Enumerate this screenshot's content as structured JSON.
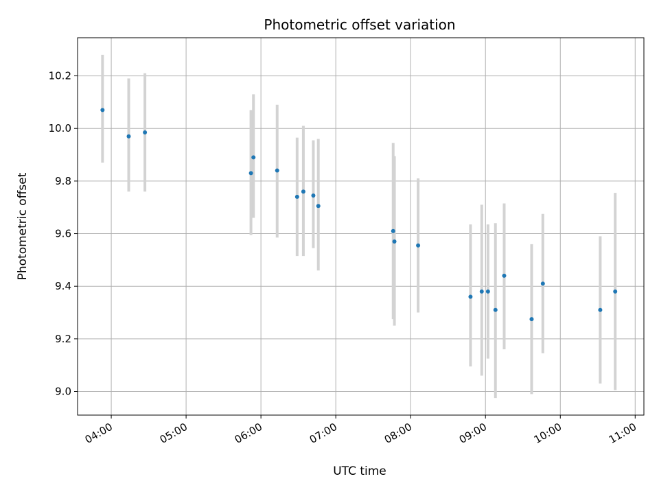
{
  "chart_data": {
    "type": "scatter",
    "title": "Photometric offset variation",
    "xlabel": "UTC time",
    "ylabel": "Photometric offset",
    "grid": true,
    "legend": "none",
    "x_ticks": [
      "04:00",
      "05:00",
      "06:00",
      "07:00",
      "08:00",
      "09:00",
      "10:00",
      "11:00"
    ],
    "y_ticks": [
      "9.0",
      "9.2",
      "9.4",
      "9.6",
      "9.8",
      "10.0",
      "10.2"
    ],
    "xlim": [
      "03:33",
      "11:07"
    ],
    "ylim": [
      8.91,
      10.345
    ],
    "colors": {
      "point": "#1f77b4",
      "errorbar": "#d3d3d3",
      "grid": "#b0b0b0"
    },
    "series": [
      {
        "points": [
          {
            "x": "03:53",
            "y": 10.07,
            "ylo": 9.87,
            "yhi": 10.28
          },
          {
            "x": "04:14",
            "y": 9.97,
            "ylo": 9.76,
            "yhi": 10.19
          },
          {
            "x": "04:27",
            "y": 9.985,
            "ylo": 9.76,
            "yhi": 10.21
          },
          {
            "x": "05:52",
            "y": 9.83,
            "ylo": 9.595,
            "yhi": 10.07
          },
          {
            "x": "05:54",
            "y": 9.89,
            "ylo": 9.66,
            "yhi": 10.13
          },
          {
            "x": "06:13",
            "y": 9.84,
            "ylo": 9.585,
            "yhi": 10.09
          },
          {
            "x": "06:29",
            "y": 9.74,
            "ylo": 9.515,
            "yhi": 9.965
          },
          {
            "x": "06:34",
            "y": 9.76,
            "ylo": 9.515,
            "yhi": 10.01
          },
          {
            "x": "06:42",
            "y": 9.745,
            "ylo": 9.545,
            "yhi": 9.955
          },
          {
            "x": "06:46",
            "y": 9.705,
            "ylo": 9.46,
            "yhi": 9.96
          },
          {
            "x": "07:46",
            "y": 9.61,
            "ylo": 9.275,
            "yhi": 9.945
          },
          {
            "x": "07:47",
            "y": 9.57,
            "ylo": 9.25,
            "yhi": 9.895
          },
          {
            "x": "08:06",
            "y": 9.555,
            "ylo": 9.3,
            "yhi": 9.81
          },
          {
            "x": "08:48",
            "y": 9.36,
            "ylo": 9.095,
            "yhi": 9.635
          },
          {
            "x": "08:57",
            "y": 9.38,
            "ylo": 9.06,
            "yhi": 9.71
          },
          {
            "x": "09:02",
            "y": 9.38,
            "ylo": 9.125,
            "yhi": 9.635
          },
          {
            "x": "09:08",
            "y": 9.31,
            "ylo": 8.975,
            "yhi": 9.64
          },
          {
            "x": "09:15",
            "y": 9.44,
            "ylo": 9.16,
            "yhi": 9.715
          },
          {
            "x": "09:37",
            "y": 9.275,
            "ylo": 8.99,
            "yhi": 9.56
          },
          {
            "x": "09:46",
            "y": 9.41,
            "ylo": 9.145,
            "yhi": 9.675
          },
          {
            "x": "10:32",
            "y": 9.31,
            "ylo": 9.03,
            "yhi": 9.59
          },
          {
            "x": "10:44",
            "y": 9.38,
            "ylo": 9.005,
            "yhi": 9.755
          }
        ]
      }
    ]
  }
}
